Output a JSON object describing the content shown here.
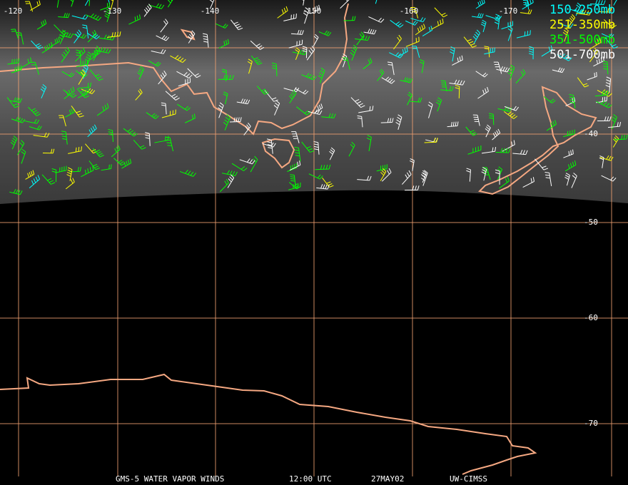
{
  "longitude_labels": [
    "-120",
    "-130",
    "-140",
    "-150",
    "-160",
    "-170"
  ],
  "latitude_labels": [
    "-40",
    "-50",
    "-60",
    "-70"
  ],
  "legend": [
    {
      "label": "150-250mb",
      "color": "#00ffff"
    },
    {
      "label": "251-350mb",
      "color": "#ffff00"
    },
    {
      "label": "351-500mb",
      "color": "#00ff00"
    },
    {
      "label": "501-700mb",
      "color": "#ffffff"
    }
  ],
  "footer": {
    "product": "GMS-5 WATER VAPOR WINDS",
    "time": "12:00 UTC",
    "date": "27MAY02",
    "source": "UW-CIMSS"
  }
}
